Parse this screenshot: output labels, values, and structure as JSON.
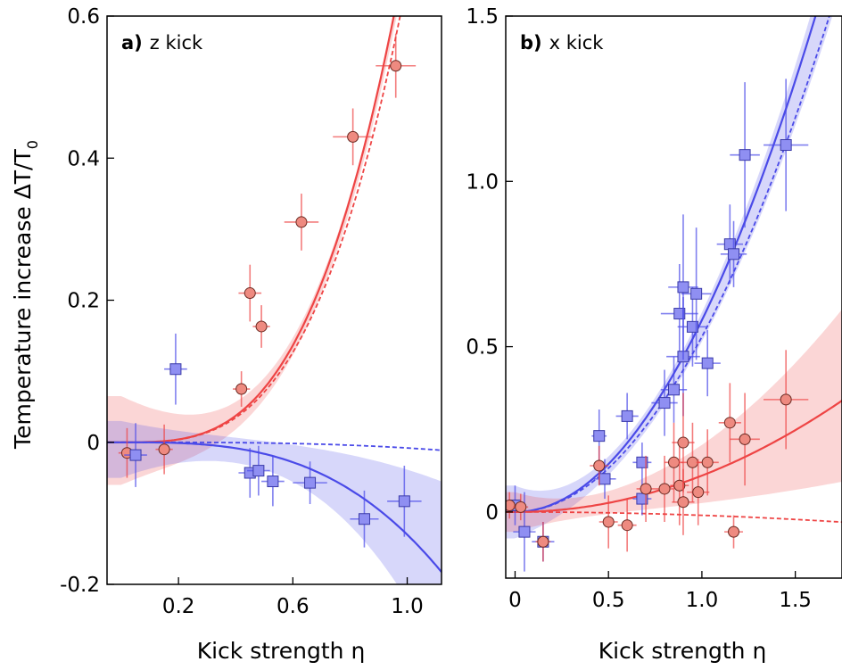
{
  "ylabel": "Temperature increase ΔT/T",
  "ylabel_sub": "0",
  "colors": {
    "red": "#ee4444",
    "blue": "#4a4ae8",
    "red_marker": "#ee8a80",
    "blue_marker": "#8f8ff2"
  },
  "chart_data": [
    {
      "type": "scatter",
      "panel_letter": "a)",
      "panel_text": "z kick",
      "xlabel": "Kick strength η",
      "ylabel": "Temperature increase ΔT/T0",
      "xlim": [
        -0.05,
        1.12
      ],
      "ylim": [
        -0.2,
        0.6
      ],
      "xticks": [
        0.2,
        0.6,
        1.0
      ],
      "xtick_labels": [
        "0.2",
        "0.6",
        "1.0"
      ],
      "yticks": [
        -0.2,
        0,
        0.2,
        0.4,
        0.6
      ],
      "ytick_labels": [
        "-0.2",
        "0",
        "0.2",
        "0.4",
        "0.6"
      ],
      "series": [
        {
          "color": "red",
          "marker": "circle",
          "points": [
            {
              "x": 0.02,
              "y": -0.015,
              "xerr": 0.03,
              "yerr": 0.035
            },
            {
              "x": 0.15,
              "y": -0.01,
              "xerr": 0.03,
              "yerr": 0.035
            },
            {
              "x": 0.42,
              "y": 0.075,
              "xerr": 0.03,
              "yerr": 0.025
            },
            {
              "x": 0.45,
              "y": 0.21,
              "xerr": 0.04,
              "yerr": 0.04
            },
            {
              "x": 0.49,
              "y": 0.163,
              "xerr": 0.03,
              "yerr": 0.03
            },
            {
              "x": 0.63,
              "y": 0.31,
              "xerr": 0.06,
              "yerr": 0.04
            },
            {
              "x": 0.81,
              "y": 0.43,
              "xerr": 0.07,
              "yerr": 0.04
            },
            {
              "x": 0.96,
              "y": 0.53,
              "xerr": 0.07,
              "yerr": 0.045
            }
          ],
          "fit": {
            "a": 0.7,
            "p": 3.2
          },
          "band": {
            "low_a": 0.68,
            "high_a": 0.7,
            "low_off": -0.06,
            "high_off": 0.065
          },
          "dashed": {
            "a": 0.65,
            "p": 3.2
          }
        },
        {
          "color": "blue",
          "marker": "square",
          "points": [
            {
              "x": 0.05,
              "y": -0.018,
              "xerr": 0.04,
              "yerr": 0.045
            },
            {
              "x": 0.19,
              "y": 0.103,
              "xerr": 0.04,
              "yerr": 0.05
            },
            {
              "x": 0.45,
              "y": -0.043,
              "xerr": 0.04,
              "yerr": 0.035
            },
            {
              "x": 0.48,
              "y": -0.04,
              "xerr": 0.04,
              "yerr": 0.035
            },
            {
              "x": 0.53,
              "y": -0.055,
              "xerr": 0.04,
              "yerr": 0.035
            },
            {
              "x": 0.66,
              "y": -0.057,
              "xerr": 0.06,
              "yerr": 0.03
            },
            {
              "x": 0.85,
              "y": -0.108,
              "xerr": 0.05,
              "yerr": 0.04
            },
            {
              "x": 0.99,
              "y": -0.083,
              "xerr": 0.06,
              "yerr": 0.05
            }
          ],
          "fit": {
            "a": -0.13,
            "p": 3
          },
          "band": {
            "low_a": -0.22,
            "high_a": -0.04,
            "low_off": -0.05,
            "high_off": 0.03
          },
          "dashed": {
            "a": -0.008,
            "p": 3
          }
        }
      ]
    },
    {
      "type": "scatter",
      "panel_letter": "b)",
      "panel_text": "x kick",
      "xlabel": "Kick strength η",
      "ylabel": "",
      "xlim": [
        -0.05,
        1.75
      ],
      "ylim": [
        -0.2,
        1.5
      ],
      "xticks": [
        0,
        0.5,
        1.0,
        1.5
      ],
      "xtick_labels": [
        "0",
        "0.5",
        "1.0",
        "1.5"
      ],
      "yticks": [
        0,
        0.5,
        1.0,
        1.5
      ],
      "ytick_labels": [
        "0",
        "0.5",
        "1.0",
        "1.5"
      ],
      "series": [
        {
          "color": "blue",
          "marker": "square",
          "points": [
            {
              "x": 0.0,
              "y": 0.02,
              "xerr": 0.04,
              "yerr": 0.06
            },
            {
              "x": 0.05,
              "y": -0.06,
              "xerr": 0.06,
              "yerr": 0.12
            },
            {
              "x": 0.15,
              "y": -0.09,
              "xerr": 0.06,
              "yerr": 0.06
            },
            {
              "x": 0.45,
              "y": 0.23,
              "xerr": 0.04,
              "yerr": 0.08
            },
            {
              "x": 0.48,
              "y": 0.1,
              "xerr": 0.06,
              "yerr": 0.06
            },
            {
              "x": 0.6,
              "y": 0.29,
              "xerr": 0.06,
              "yerr": 0.07
            },
            {
              "x": 0.68,
              "y": 0.04,
              "xerr": 0.05,
              "yerr": 0.05
            },
            {
              "x": 0.68,
              "y": 0.15,
              "xerr": 0.05,
              "yerr": 0.06
            },
            {
              "x": 0.8,
              "y": 0.33,
              "xerr": 0.07,
              "yerr": 0.1
            },
            {
              "x": 0.85,
              "y": 0.37,
              "xerr": 0.07,
              "yerr": 0.1
            },
            {
              "x": 0.88,
              "y": 0.6,
              "xerr": 0.1,
              "yerr": 0.15
            },
            {
              "x": 0.9,
              "y": 0.47,
              "xerr": 0.09,
              "yerr": 0.18
            },
            {
              "x": 0.9,
              "y": 0.68,
              "xerr": 0.08,
              "yerr": 0.22
            },
            {
              "x": 0.95,
              "y": 0.56,
              "xerr": 0.08,
              "yerr": 0.12
            },
            {
              "x": 0.97,
              "y": 0.66,
              "xerr": 0.08,
              "yerr": 0.2
            },
            {
              "x": 1.03,
              "y": 0.45,
              "xerr": 0.07,
              "yerr": 0.1
            },
            {
              "x": 1.15,
              "y": 0.81,
              "xerr": 0.07,
              "yerr": 0.12
            },
            {
              "x": 1.17,
              "y": 0.78,
              "xerr": 0.07,
              "yerr": 0.1
            },
            {
              "x": 1.23,
              "y": 1.08,
              "xerr": 0.08,
              "yerr": 0.22
            },
            {
              "x": 1.45,
              "y": 1.11,
              "xerr": 0.12,
              "yerr": 0.2
            }
          ],
          "fit": {
            "a": 0.58,
            "p": 2
          },
          "band": {
            "low_a": 0.52,
            "high_a": 0.6,
            "low_off": -0.08,
            "high_off": 0.08
          },
          "dashed": {
            "a": 0.53,
            "p": 2
          }
        },
        {
          "color": "red",
          "marker": "circle",
          "points": [
            {
              "x": -0.03,
              "y": 0.02,
              "xerr": 0.03,
              "yerr": 0.04
            },
            {
              "x": 0.03,
              "y": 0.015,
              "xerr": 0.04,
              "yerr": 0.04
            },
            {
              "x": 0.15,
              "y": -0.09,
              "xerr": 0.04,
              "yerr": 0.06
            },
            {
              "x": 0.45,
              "y": 0.14,
              "xerr": 0.05,
              "yerr": 0.06
            },
            {
              "x": 0.5,
              "y": -0.03,
              "xerr": 0.05,
              "yerr": 0.08
            },
            {
              "x": 0.6,
              "y": -0.04,
              "xerr": 0.05,
              "yerr": 0.08
            },
            {
              "x": 0.7,
              "y": 0.07,
              "xerr": 0.05,
              "yerr": 0.1
            },
            {
              "x": 0.8,
              "y": 0.07,
              "xerr": 0.05,
              "yerr": 0.1
            },
            {
              "x": 0.85,
              "y": 0.15,
              "xerr": 0.05,
              "yerr": 0.12
            },
            {
              "x": 0.88,
              "y": 0.08,
              "xerr": 0.05,
              "yerr": 0.12
            },
            {
              "x": 0.9,
              "y": 0.21,
              "xerr": 0.06,
              "yerr": 0.15
            },
            {
              "x": 0.9,
              "y": 0.03,
              "xerr": 0.06,
              "yerr": 0.1
            },
            {
              "x": 0.95,
              "y": 0.15,
              "xerr": 0.06,
              "yerr": 0.12
            },
            {
              "x": 0.98,
              "y": 0.06,
              "xerr": 0.06,
              "yerr": 0.1
            },
            {
              "x": 1.03,
              "y": 0.15,
              "xerr": 0.06,
              "yerr": 0.1
            },
            {
              "x": 1.15,
              "y": 0.27,
              "xerr": 0.06,
              "yerr": 0.12
            },
            {
              "x": 1.17,
              "y": -0.06,
              "xerr": 0.05,
              "yerr": 0.05
            },
            {
              "x": 1.23,
              "y": 0.22,
              "xerr": 0.08,
              "yerr": 0.14
            },
            {
              "x": 1.45,
              "y": 0.34,
              "xerr": 0.12,
              "yerr": 0.15
            }
          ],
          "fit": {
            "a": 0.11,
            "p": 2
          },
          "band": {
            "low_a": 0.03,
            "high_a": 0.2,
            "low_off": -0.06,
            "high_off": 0.06
          },
          "dashed": {
            "a": -0.01,
            "p": 2
          }
        }
      ]
    }
  ]
}
